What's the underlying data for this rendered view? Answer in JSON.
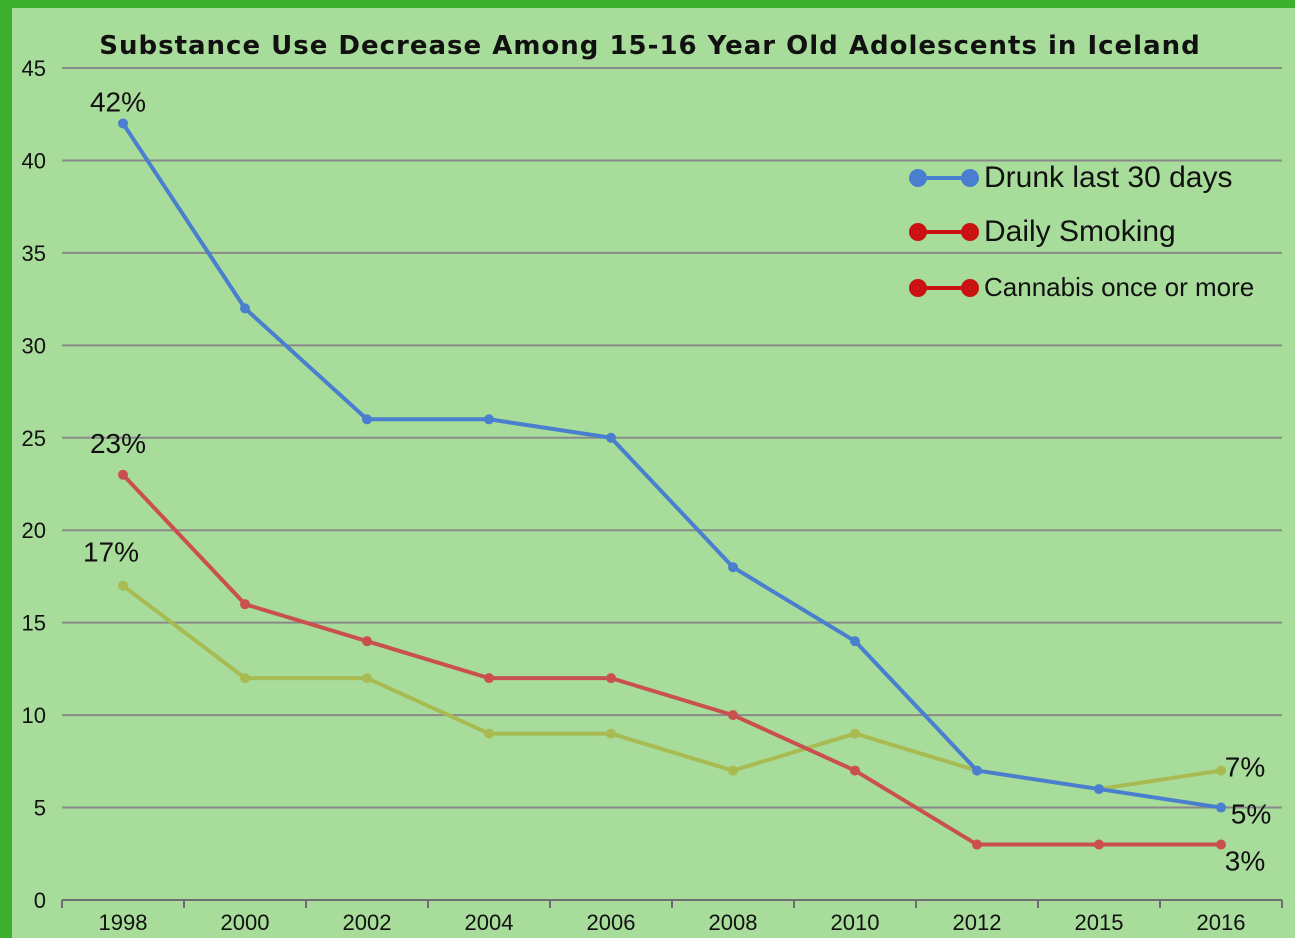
{
  "chart_data": {
    "type": "line",
    "title": "Substance Use Decrease Among 15-16 Year Old Adolescents in Iceland",
    "xlabel": "",
    "ylabel": "",
    "categories": [
      "1998",
      "2000",
      "2002",
      "2004",
      "2006",
      "2008",
      "2010",
      "2012",
      "2015",
      "2016"
    ],
    "ylim": [
      0,
      45
    ],
    "yticks": [
      "0",
      "5",
      "10",
      "15",
      "20",
      "25",
      "30",
      "35",
      "40",
      "45"
    ],
    "grid": true,
    "legend_position": "top-right",
    "series": [
      {
        "name": "Drunk last 30 days",
        "color": "#4a7fcf",
        "values": [
          42,
          32,
          26,
          26,
          25,
          18,
          14,
          7,
          6,
          5
        ]
      },
      {
        "name": "Daily Smoking",
        "color": "#c9504e",
        "values": [
          23,
          16,
          14,
          12,
          12,
          10,
          7,
          3,
          3,
          3
        ]
      },
      {
        "name": "Cannabis once or more",
        "color": "#a8bb52",
        "values": [
          17,
          12,
          12,
          9,
          9,
          7,
          9,
          7,
          6,
          7
        ]
      }
    ],
    "legend_marker_colors": [
      "#4a7fcf",
      "#cc1111",
      "#cc1111"
    ],
    "annotations": [
      {
        "text": "42%",
        "series": 0,
        "index": 0
      },
      {
        "text": "23%",
        "series": 1,
        "index": 0
      },
      {
        "text": "17%",
        "series": 2,
        "index": 0
      },
      {
        "text": "7%",
        "series": 2,
        "index": 9
      },
      {
        "text": "5%",
        "series": 0,
        "index": 9
      },
      {
        "text": "3%",
        "series": 1,
        "index": 9
      }
    ]
  }
}
